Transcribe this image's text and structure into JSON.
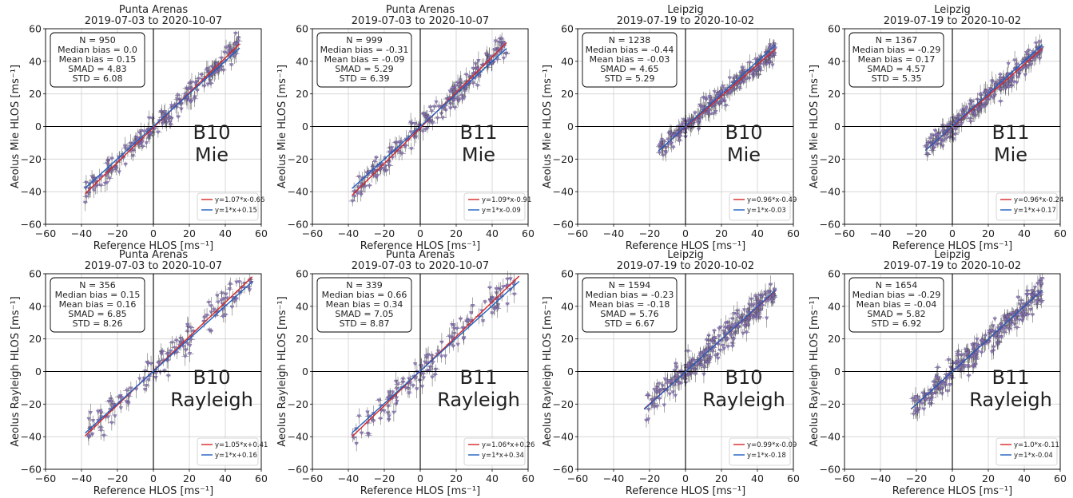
{
  "chart_data": [
    {
      "type": "scatter",
      "title": "Punta Arenas",
      "subtitle": "2019-07-03 to 2020-10-07",
      "xlabel": "Reference HLOS [ms⁻¹]",
      "ylabel": "Aeolus Mie HLOS [ms⁻¹]",
      "xlim": [
        -60,
        60
      ],
      "ylim": [
        -60,
        60
      ],
      "xticks": [
        "−60",
        "−40",
        "−20",
        "0",
        "20",
        "40",
        "60"
      ],
      "yticks": [
        "−60",
        "−40",
        "−20",
        "0",
        "20",
        "40",
        "60"
      ],
      "stats": [
        "N = 950",
        "Median bias = 0.0",
        "Mean bias = 0.15",
        "SMAD = 4.83",
        "STD = 6.08"
      ],
      "band_label": [
        "B10",
        "Mie"
      ],
      "legend_placement": "bottom-right",
      "series": [
        {
          "name": "y=1.07*x-0.66",
          "slope": 1.07,
          "intercept": -0.66,
          "color": "#d62728"
        },
        {
          "name": "y=1*x+0.15",
          "slope": 1.0,
          "intercept": 0.15,
          "color": "#1f5fbf"
        }
      ],
      "point_x_range": [
        -38,
        48
      ],
      "point_count_drawn": 220,
      "point_spread": 5
    },
    {
      "type": "scatter",
      "title": "Punta Arenas",
      "subtitle": "2019-07-03 to 2020-10-07",
      "xlabel": "Reference HLOS [ms⁻¹]",
      "ylabel": "Aeolus Mie HLOS [ms⁻¹]",
      "xlim": [
        -60,
        60
      ],
      "ylim": [
        -60,
        60
      ],
      "xticks": [
        "−60",
        "−40",
        "−20",
        "0",
        "20",
        "40",
        "60"
      ],
      "yticks": [
        "−60",
        "−40",
        "−20",
        "0",
        "20",
        "40",
        "60"
      ],
      "stats": [
        "N = 999",
        "Median bias = -0.31",
        "Mean bias = -0.09",
        "SMAD = 5.29",
        "STD = 6.39"
      ],
      "band_label": [
        "B11",
        "Mie"
      ],
      "legend_placement": "bottom-right",
      "series": [
        {
          "name": "y=1.09*x-0.91",
          "slope": 1.09,
          "intercept": -0.91,
          "color": "#d62728"
        },
        {
          "name": "y=1*x-0.09",
          "slope": 1.0,
          "intercept": -0.09,
          "color": "#1f5fbf"
        }
      ],
      "point_x_range": [
        -38,
        48
      ],
      "point_count_drawn": 220,
      "point_spread": 5
    },
    {
      "type": "scatter",
      "title": "Leipzig",
      "subtitle": "2019-07-19 to 2020-10-02",
      "xlabel": "Reference HLOS [ms⁻¹]",
      "ylabel": "Aeolus Mie HLOS [ms⁻¹]",
      "xlim": [
        -60,
        60
      ],
      "ylim": [
        -60,
        60
      ],
      "xticks": [
        "−60",
        "−40",
        "−20",
        "0",
        "20",
        "40",
        "60"
      ],
      "yticks": [
        "−60",
        "−40",
        "−20",
        "0",
        "20",
        "40",
        "60"
      ],
      "stats": [
        "N = 1238",
        "Median bias = -0.44",
        "Mean bias = -0.03",
        "SMAD = 4.65",
        "STD = 5.29"
      ],
      "band_label": [
        "B10",
        "Mie"
      ],
      "legend_placement": "bottom-right",
      "series": [
        {
          "name": "y=0.96*x-0.49",
          "slope": 0.96,
          "intercept": -0.49,
          "color": "#d62728"
        },
        {
          "name": "y=1*x-0.03",
          "slope": 1.0,
          "intercept": -0.03,
          "color": "#1f5fbf"
        }
      ],
      "point_x_range": [
        -15,
        50
      ],
      "point_count_drawn": 260,
      "point_spread": 4.5
    },
    {
      "type": "scatter",
      "title": "Leipzig",
      "subtitle": "2019-07-19 to 2020-10-02",
      "xlabel": "Reference HLOS [ms⁻¹]",
      "ylabel": "Aeolus Mie HLOS [ms⁻¹]",
      "xlim": [
        -60,
        60
      ],
      "ylim": [
        -60,
        60
      ],
      "xticks": [
        "−60",
        "−40",
        "−20",
        "0",
        "20",
        "40",
        "60"
      ],
      "yticks": [
        "−60",
        "−40",
        "−20",
        "0",
        "20",
        "40",
        "60"
      ],
      "stats": [
        "N = 1367",
        "Median bias = -0.29",
        "Mean bias = 0.17",
        "SMAD = 4.57",
        "STD = 5.35"
      ],
      "band_label": [
        "B11",
        "Mie"
      ],
      "legend_placement": "bottom-right",
      "series": [
        {
          "name": "y=0.96*x-0.24",
          "slope": 0.96,
          "intercept": -0.24,
          "color": "#d62728"
        },
        {
          "name": "y=1*x+0.17",
          "slope": 1.0,
          "intercept": 0.17,
          "color": "#1f5fbf"
        }
      ],
      "point_x_range": [
        -15,
        50
      ],
      "point_count_drawn": 260,
      "point_spread": 4.5
    },
    {
      "type": "scatter",
      "title": "Punta Arenas",
      "subtitle": "2019-07-03 to 2020-10-07",
      "xlabel": "Reference HLOS [ms⁻¹]",
      "ylabel": "Aeolus Rayleigh HLOS [ms⁻¹]",
      "xlim": [
        -60,
        60
      ],
      "ylim": [
        -60,
        60
      ],
      "xticks": [
        "−60",
        "−40",
        "−20",
        "0",
        "20",
        "40",
        "60"
      ],
      "yticks": [
        "−60",
        "−40",
        "−20",
        "0",
        "20",
        "40",
        "60"
      ],
      "stats": [
        "N = 356",
        "Median bias = 0.15",
        "Mean bias = 0.16",
        "SMAD = 6.85",
        "STD = 8.26"
      ],
      "band_label": [
        "B10",
        "Rayleigh"
      ],
      "legend_placement": "bottom-right",
      "series": [
        {
          "name": "y=1.05*x+0.41",
          "slope": 1.05,
          "intercept": 0.41,
          "color": "#d62728"
        },
        {
          "name": "y=1*x+0.16",
          "slope": 1.0,
          "intercept": 0.16,
          "color": "#1f5fbf"
        }
      ],
      "point_x_range": [
        -38,
        55
      ],
      "point_count_drawn": 140,
      "point_spread": 7
    },
    {
      "type": "scatter",
      "title": "Punta Arenas",
      "subtitle": "2019-07-03 to 2020-10-07",
      "xlabel": "Reference HLOS [ms⁻¹]",
      "ylabel": "Aeolus Rayleigh HLOS [ms⁻¹]",
      "xlim": [
        -60,
        60
      ],
      "ylim": [
        -60,
        60
      ],
      "xticks": [
        "−60",
        "−40",
        "−20",
        "0",
        "20",
        "40",
        "60"
      ],
      "yticks": [
        "−60",
        "−40",
        "−20",
        "0",
        "20",
        "40",
        "60"
      ],
      "stats": [
        "N = 339",
        "Median bias = 0.66",
        "Mean bias = 0.34",
        "SMAD = 7.05",
        "STD = 8.87"
      ],
      "band_label": [
        "B11",
        "Rayleigh"
      ],
      "legend_placement": "bottom-right",
      "series": [
        {
          "name": "y=1.06*x+0.26",
          "slope": 1.06,
          "intercept": 0.26,
          "color": "#d62728"
        },
        {
          "name": "y=1*x+0.34",
          "slope": 1.0,
          "intercept": 0.34,
          "color": "#1f5fbf"
        }
      ],
      "point_x_range": [
        -38,
        55
      ],
      "point_count_drawn": 140,
      "point_spread": 7
    },
    {
      "type": "scatter",
      "title": "Leipzig",
      "subtitle": "2019-07-19 to 2020-10-02",
      "xlabel": "Reference HLOS [ms⁻¹]",
      "ylabel": "Aeolus Rayleigh HLOS [ms⁻¹]",
      "xlim": [
        -60,
        60
      ],
      "ylim": [
        -60,
        60
      ],
      "xticks": [
        "−60",
        "−40",
        "−20",
        "0",
        "20",
        "40",
        "60"
      ],
      "yticks": [
        "−60",
        "−40",
        "−20",
        "0",
        "20",
        "40",
        "60"
      ],
      "stats": [
        "N = 1594",
        "Median bias = -0.23",
        "Mean bias = -0.18",
        "SMAD = 5.76",
        "STD = 6.67"
      ],
      "band_label": [
        "B10",
        "Rayleigh"
      ],
      "legend_placement": "bottom-right",
      "series": [
        {
          "name": "y=0.99*x-0.09",
          "slope": 0.99,
          "intercept": -0.09,
          "color": "#d62728"
        },
        {
          "name": "y=1*x-0.18",
          "slope": 1.0,
          "intercept": -0.18,
          "color": "#1f5fbf"
        }
      ],
      "point_x_range": [
        -23,
        50
      ],
      "point_count_drawn": 280,
      "point_spread": 6
    },
    {
      "type": "scatter",
      "title": "Leipzig",
      "subtitle": "2019-07-19 to 2020-10-02",
      "xlabel": "Reference HLOS [ms⁻¹]",
      "ylabel": "Aeolus Rayleigh HLOS [ms⁻¹]",
      "xlim": [
        -60,
        60
      ],
      "ylim": [
        -60,
        60
      ],
      "xticks": [
        "−60",
        "−40",
        "−20",
        "0",
        "20",
        "40",
        "60"
      ],
      "yticks": [
        "−60",
        "−40",
        "−20",
        "0",
        "20",
        "40",
        "60"
      ],
      "stats": [
        "N = 1654",
        "Median bias = -0.29",
        "Mean bias = -0.04",
        "SMAD = 5.82",
        "STD = 6.92"
      ],
      "band_label": [
        "B11",
        "Rayleigh"
      ],
      "legend_placement": "bottom-right",
      "series": [
        {
          "name": "y=1.0*x-0.11",
          "slope": 1.0,
          "intercept": -0.11,
          "color": "#d62728"
        },
        {
          "name": "y=1*x-0.04",
          "slope": 1.0,
          "intercept": -0.04,
          "color": "#1f5fbf"
        }
      ],
      "point_x_range": [
        -23,
        50
      ],
      "point_count_drawn": 280,
      "point_spread": 6
    }
  ],
  "marker_color": "#8b74b8",
  "errorbar_color": "#555555"
}
